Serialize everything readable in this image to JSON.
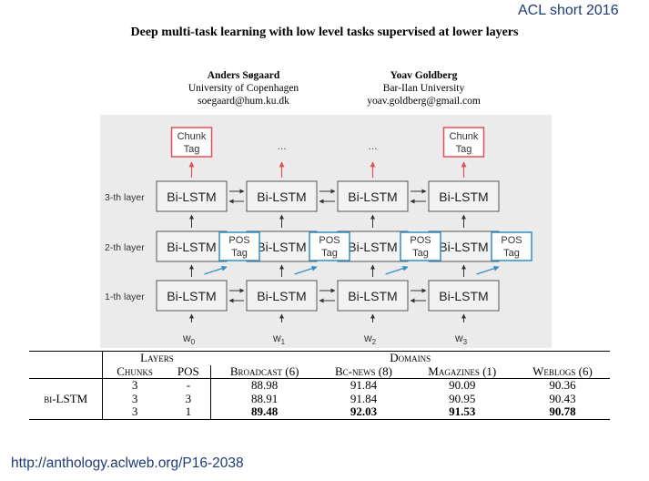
{
  "slide": {
    "venue": "ACL short 2016",
    "title": "Deep multi-task learning with low level tasks supervised at lower layers",
    "url": "http://anthology.aclweb.org/P16-2038"
  },
  "authors": [
    {
      "name": "Anders Søgaard",
      "affiliation": "University of Copenhagen",
      "email": "soegaard@hum.ku.dk"
    },
    {
      "name": "Yoav Goldberg",
      "affiliation": "Bar-Ilan University",
      "email": "yoav.goldberg@gmail.com"
    }
  ],
  "diagram": {
    "layer_labels": [
      "3-th layer",
      "2-th layer",
      "1-th layer"
    ],
    "cell_label": "Bi-LSTM",
    "chunk_tag": [
      "Chunk",
      "Tag"
    ],
    "pos_tag": [
      "POS",
      "Tag"
    ],
    "ellipsis": "...",
    "inputs": [
      "w",
      "w",
      "w",
      "w"
    ],
    "input_subscripts": [
      "0",
      "1",
      "2",
      "3"
    ],
    "colors": {
      "chunk": "#e0505a",
      "pos": "#2f8fc8",
      "panel": "#ebebeb"
    }
  },
  "table": {
    "group_headers": {
      "layers": "Layers",
      "domains": "Domains"
    },
    "columns": [
      "Chunks",
      "POS",
      "Broadcast (6)",
      "Bc-news (8)",
      "Magazines (1)",
      "Weblogs (6)"
    ],
    "model": "bi-LSTM",
    "rows": [
      {
        "chunks": "3",
        "pos": "-",
        "broadcast": "88.98",
        "bcnews": "91.84",
        "magazines": "90.09",
        "weblogs": "90.36"
      },
      {
        "chunks": "3",
        "pos": "3",
        "broadcast": "88.91",
        "bcnews": "91.84",
        "magazines": "90.95",
        "weblogs": "90.43"
      },
      {
        "chunks": "3",
        "pos": "1",
        "broadcast": "89.48",
        "bcnews": "92.03",
        "magazines": "91.53",
        "weblogs": "90.78"
      }
    ]
  }
}
